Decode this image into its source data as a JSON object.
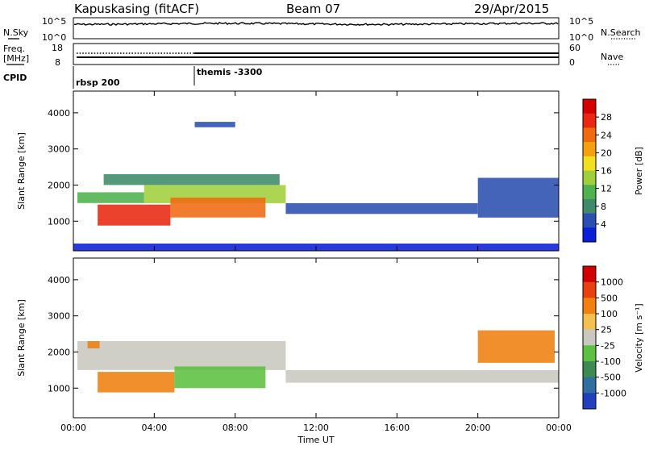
{
  "header": {
    "station": "Kapuskasing (fitACF)",
    "beam": "Beam 07",
    "date": "29/Apr/2015"
  },
  "status_panels": {
    "nsky_label": "N.Sky",
    "nsky_ticks": [
      "10^5",
      "10^0"
    ],
    "nsearch_label": "N.Search",
    "nsearch_ticks": [
      "10^5",
      "10^0"
    ],
    "freq_label_top": "Freq.",
    "freq_label_bottom": "[MHz]",
    "freq_ticks": [
      "18",
      "8"
    ],
    "nave_label": "Nave",
    "nave_ticks": [
      "60",
      "0"
    ],
    "cpid_label": "CPID",
    "cpid_segments": [
      {
        "label": "rbsp 200",
        "start_hour": 0
      },
      {
        "label": "themis -3300",
        "start_hour": 6
      }
    ]
  },
  "chart_data": [
    {
      "type": "heatmap",
      "name": "power",
      "ylabel": "Slant Range [km]",
      "y_ticks": [
        "4000",
        "3000",
        "2000",
        "1000"
      ],
      "y_tick_values": [
        4000,
        3000,
        2000,
        1000
      ],
      "ylim": [
        180,
        4600
      ],
      "xlim": [
        0,
        24
      ],
      "x_tick_values": [
        0,
        4,
        8,
        12,
        16,
        20,
        24
      ],
      "colorbar_label": "Power [dB]",
      "colorbar_ticks": [
        "28",
        "24",
        "20",
        "16",
        "12",
        "8",
        "4"
      ],
      "colorbar_colors": [
        "#0b1fd8",
        "#2a4fb0",
        "#3f8a6a",
        "#4fb24f",
        "#9fcf3a",
        "#f2e020",
        "#f6a010",
        "#f06a10",
        "#e82810",
        "#d40000"
      ],
      "regions": [
        {
          "x": [
            0.2,
            3.5
          ],
          "y": [
            1500,
            1800
          ],
          "value_level": 3
        },
        {
          "x": [
            3.5,
            10.5
          ],
          "y": [
            1500,
            2000
          ],
          "value_level": 4
        },
        {
          "x": [
            1.2,
            4.8
          ],
          "y": [
            880,
            1460
          ],
          "value_level": 8
        },
        {
          "x": [
            4.8,
            9.5
          ],
          "y": [
            1100,
            1650
          ],
          "value_level": 7
        },
        {
          "x": [
            1.5,
            10.2
          ],
          "y": [
            2000,
            2300
          ],
          "value_level": 2
        },
        {
          "x": [
            10.5,
            20.0
          ],
          "y": [
            1200,
            1500
          ],
          "value_level": 1
        },
        {
          "x": [
            20.0,
            24.0
          ],
          "y": [
            1100,
            2200
          ],
          "value_level": 1
        },
        {
          "x": [
            6.0,
            8.0
          ],
          "y": [
            3600,
            3750
          ],
          "value_level": 1
        },
        {
          "x": [
            0,
            24
          ],
          "y": [
            190,
            380
          ],
          "value_level": 0
        }
      ]
    },
    {
      "type": "heatmap",
      "name": "velocity",
      "ylabel": "Slant Range [km]",
      "y_ticks": [
        "4000",
        "3000",
        "2000",
        "1000"
      ],
      "y_tick_values": [
        4000,
        3000,
        2000,
        1000
      ],
      "ylim": [
        180,
        4600
      ],
      "xlim": [
        0,
        24
      ],
      "x_tick_values": [
        0,
        4,
        8,
        12,
        16,
        20,
        24
      ],
      "x_tick_labels": [
        "00:00",
        "04:00",
        "08:00",
        "12:00",
        "16:00",
        "20:00",
        "00:00"
      ],
      "xlabel": "Time UT",
      "colorbar_label": "Velocity [m s⁻¹]",
      "colorbar_ticks": [
        "1000",
        "500",
        "100",
        "25",
        "-25",
        "-100",
        "-500",
        "-1000"
      ],
      "colorbar_colors": [
        "#2040c0",
        "#2f6fa0",
        "#3d8a55",
        "#5cc040",
        "#c8c8c0",
        "#f5c050",
        "#f08010",
        "#e84010",
        "#d00000"
      ],
      "regions": [
        {
          "x": [
            0.2,
            10.5
          ],
          "y": [
            1500,
            2300
          ],
          "value_level": 4
        },
        {
          "x": [
            1.2,
            5.0
          ],
          "y": [
            880,
            1450
          ],
          "value_level": 6
        },
        {
          "x": [
            5.0,
            9.5
          ],
          "y": [
            1000,
            1600
          ],
          "value_level": 3
        },
        {
          "x": [
            10.5,
            24.0
          ],
          "y": [
            1150,
            1500
          ],
          "value_level": 4
        },
        {
          "x": [
            20.0,
            23.8
          ],
          "y": [
            1700,
            2600
          ],
          "value_level": 6
        },
        {
          "x": [
            0.7,
            1.3
          ],
          "y": [
            2100,
            2300
          ],
          "value_level": 6
        }
      ]
    }
  ]
}
